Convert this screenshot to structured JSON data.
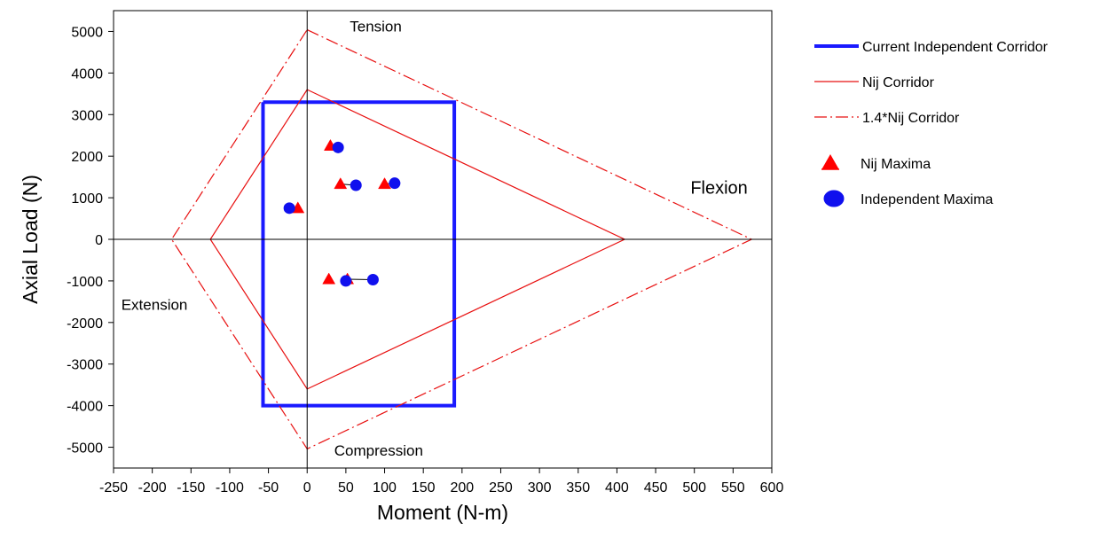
{
  "chart_data": {
    "type": "scatter",
    "title": "",
    "xlabel": "Moment (N-m)",
    "ylabel": "Axial Load (N)",
    "xlim": [
      -250,
      600
    ],
    "ylim": [
      -5500,
      5500
    ],
    "x_ticks": [
      -250,
      -200,
      -150,
      -100,
      -50,
      0,
      50,
      100,
      150,
      200,
      250,
      300,
      350,
      400,
      450,
      500,
      550,
      600
    ],
    "y_ticks": [
      -5000,
      -4000,
      -3000,
      -2000,
      -1000,
      0,
      1000,
      2000,
      3000,
      4000,
      5000
    ],
    "grid": false,
    "legend_position": "right",
    "annotations": [
      {
        "text": "Tension",
        "x": 55,
        "y": 5000,
        "size": "normal"
      },
      {
        "text": "Compression",
        "x": 35,
        "y": -5200,
        "size": "normal"
      },
      {
        "text": "Extension",
        "x": -240,
        "y": -1700,
        "size": "normal"
      },
      {
        "text": "Flexion",
        "x": 495,
        "y": 1100,
        "size": "large"
      }
    ],
    "series": [
      {
        "name": "Current Independent Corridor",
        "kind": "line",
        "style": "solid-thick",
        "color": "#1a1aff",
        "points": [
          [
            -57,
            3300
          ],
          [
            190,
            3300
          ],
          [
            190,
            -4000
          ],
          [
            -57,
            -4000
          ],
          [
            -57,
            3300
          ]
        ]
      },
      {
        "name": "Nij Corridor",
        "kind": "line",
        "style": "solid",
        "color": "#e81010",
        "points": [
          [
            0,
            3600
          ],
          [
            410,
            0
          ],
          [
            0,
            -3600
          ],
          [
            -125,
            0
          ],
          [
            0,
            3600
          ]
        ]
      },
      {
        "name": "1.4*Nij Corridor",
        "kind": "line",
        "style": "dash-dot",
        "color": "#e81010",
        "points": [
          [
            0,
            5040
          ],
          [
            574,
            0
          ],
          [
            0,
            -5040
          ],
          [
            -175,
            0
          ],
          [
            0,
            5040
          ]
        ]
      },
      {
        "name": "Nij Maxima",
        "kind": "marker",
        "marker": "triangle",
        "color": "#ff0000",
        "points": [
          [
            30,
            2250
          ],
          [
            43,
            1330
          ],
          [
            100,
            1330
          ],
          [
            -12,
            750
          ],
          [
            28,
            -960
          ],
          [
            52,
            -960
          ]
        ]
      },
      {
        "name": "Independent Maxima",
        "kind": "marker",
        "marker": "circle",
        "color": "#1010ee",
        "points": [
          [
            40,
            2210
          ],
          [
            63,
            1300
          ],
          [
            113,
            1350
          ],
          [
            -23,
            750
          ],
          [
            85,
            -970
          ],
          [
            50,
            -1000
          ]
        ]
      }
    ],
    "pair_connectors": [
      {
        "from": [
          43,
          1330
        ],
        "to": [
          63,
          1300
        ]
      },
      {
        "from": [
          100,
          1330
        ],
        "to": [
          113,
          1350
        ]
      },
      {
        "from": [
          52,
          -960
        ],
        "to": [
          85,
          -970
        ]
      },
      {
        "from": [
          50,
          -1000
        ],
        "to": [
          52,
          -960
        ]
      }
    ]
  }
}
